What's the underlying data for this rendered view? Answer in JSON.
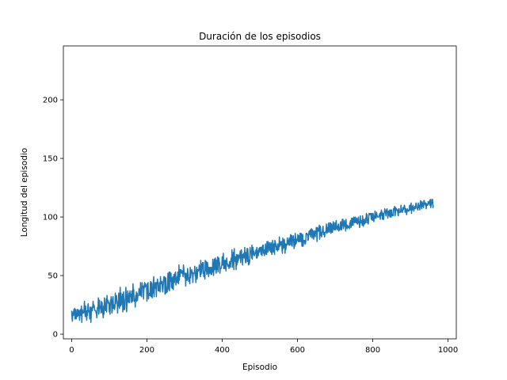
{
  "chart_data": {
    "type": "line",
    "title": "Duración de los episodios",
    "xlabel": "Episodio",
    "ylabel": "Longitud del episodio",
    "xlim": [
      -22,
      1022
    ],
    "ylim": [
      -4,
      246
    ],
    "grid": false,
    "x_ticks": [
      0,
      200,
      400,
      600,
      800,
      1000
    ],
    "y_ticks": [
      0,
      50,
      100,
      150,
      200
    ],
    "x_tick_labels": [
      "0",
      "200",
      "400",
      "600",
      "800",
      "1000"
    ],
    "y_tick_labels": [
      "0",
      "50",
      "100",
      "150",
      "200"
    ],
    "series": [
      {
        "name": "Longitud del episodio",
        "color": "#1f77b4",
        "x_start": 0,
        "x_step": 1,
        "n_points": 1000,
        "values": [
          20,
          14,
          11,
          17,
          19,
          16,
          21,
          17,
          22,
          13,
          20,
          21,
          13,
          18,
          15,
          21,
          15,
          21,
          19,
          16,
          20,
          12,
          16,
          21,
          16,
          17,
          24,
          10,
          21,
          20,
          18,
          19,
          18,
          22,
          28,
          21,
          15,
          24,
          19,
          16,
          12,
          20,
          16,
          24,
          26,
          19,
          20,
          20,
          13,
          23,
          23,
          10,
          16,
          22,
          23,
          20,
          23,
          28,
          23,
          25,
          24,
          21,
          20,
          20,
          20,
          18,
          17,
          14,
          21,
          23,
          22,
          31,
          17,
          19,
          29,
          22,
          23,
          24,
          18,
          28,
          19,
          27,
          19,
          17,
          14,
          24,
          17,
          31,
          26,
          23,
          20,
          25,
          30,
          19,
          33,
          27,
          29,
          28,
          26,
          27,
          19,
          26,
          17,
          29,
          26,
          32,
          26,
          18,
          20,
          30,
          32,
          22,
          25,
          25,
          21,
          23,
          35,
          26,
          32,
          33,
          29,
          27,
          18,
          27,
          25,
          35,
          24,
          22,
          32,
          40,
          24,
          35,
          25,
          32,
          28,
          34,
          19,
          32,
          36,
          21,
          21,
          21,
          29,
          32,
          40,
          34,
          19,
          26,
          31,
          37,
          29,
          27,
          28,
          35,
          27,
          37,
          33,
          32,
          34,
          27,
          37,
          28,
          28,
          43,
          35,
          38,
          28,
          30,
          30,
          23,
          33,
          29,
          36,
          28,
          35,
          29,
          33,
          33,
          33,
          39,
          37,
          35,
          33,
          44,
          34,
          33,
          32,
          44,
          40,
          40,
          41,
          30,
          38,
          42,
          44,
          40,
          43,
          42,
          41,
          41,
          28,
          43,
          39,
          44,
          30,
          33,
          34,
          35,
          33,
          43,
          45,
          32,
          44,
          43,
          31,
          37,
          35,
          45,
          49,
          32,
          39,
          40,
          44,
          39,
          44,
          32,
          44,
          43,
          47,
          44,
          37,
          39,
          37,
          44,
          41,
          36,
          49,
          44,
          43,
          44,
          45,
          39,
          36,
          40,
          46,
          49,
          45,
          49,
          34,
          44,
          48,
          35,
          40,
          36,
          36,
          47,
          52,
          41,
          38,
          53,
          37,
          53,
          48,
          45,
          52,
          40,
          48,
          39,
          46,
          49,
          38,
          48,
          51,
          44,
          51,
          52,
          53,
          42,
          46,
          45,
          49,
          44,
          53,
          50,
          43,
          59,
          46,
          55,
          49,
          55,
          55,
          54,
          52,
          54,
          54,
          52,
          49,
          59,
          56,
          52,
          51,
          48,
          52,
          41,
          52,
          50,
          46,
          46,
          56,
          53,
          51,
          45,
          48,
          48,
          43,
          57,
          48,
          51,
          53,
          55,
          52,
          53,
          44,
          52,
          52,
          52,
          52,
          58,
          50,
          52,
          44,
          53,
          57,
          47,
          49,
          55,
          55,
          54,
          55,
          59,
          56,
          52,
          49,
          63,
          51,
          54,
          60,
          58,
          61,
          52,
          61,
          49,
          53,
          53,
          47,
          63,
          58,
          54,
          62,
          51,
          52,
          61,
          57,
          54,
          49,
          57,
          52,
          56,
          57,
          53,
          51,
          57,
          51,
          56,
          53,
          64,
          57,
          50,
          56,
          64,
          55,
          57,
          65,
          57,
          52,
          63,
          55,
          63,
          66,
          53,
          61,
          65,
          62,
          61,
          52,
          56,
          56,
          56,
          58,
          59,
          66,
          59,
          65,
          69,
          56,
          61,
          63,
          56,
          63,
          60,
          54,
          62,
          65,
          60,
          60,
          58,
          59,
          59,
          56,
          60,
          62,
          58,
          57,
          63,
          65,
          62,
          72,
          57,
          64,
          66,
          70,
          55,
          73,
          62,
          65,
          66,
          65,
          55,
          68,
          59,
          67,
          61,
          68,
          63,
          67,
          65,
          65,
          68,
          71,
          61,
          65,
          72,
          66,
          67,
          59,
          68,
          66,
          69,
          65,
          65,
          74,
          66,
          61,
          61,
          70,
          65,
          73,
          62,
          73,
          67,
          59,
          63,
          60,
          62,
          74,
          71,
          71,
          69,
          65,
          76,
          64,
          73,
          74,
          68,
          71,
          67,
          67,
          69,
          69,
          71,
          72,
          65,
          74,
          65,
          71,
          71,
          67,
          73,
          73,
          70,
          74,
          72,
          74,
          68,
          74,
          74,
          67,
          75,
          76,
          76,
          69,
          72,
          67,
          69,
          69,
          77,
          73,
          68,
          68,
          79,
          77,
          70,
          79,
          75,
          74,
          71,
          78,
          76,
          75,
          70,
          78,
          70,
          68,
          73,
          80,
          73,
          70,
          77,
          77,
          68,
          80,
          79,
          75,
          77,
          72,
          75,
          75,
          71,
          77,
          76,
          72,
          76,
          83,
          75,
          78,
          79,
          76,
          76,
          79,
          72,
          69,
          82,
          73,
          80,
          74,
          81,
          77,
          69,
          77,
          72,
          75,
          77,
          76,
          82,
          79,
          77,
          80,
          76,
          82,
          76,
          76,
          83,
          85,
          84,
          76,
          84,
          75,
          82,
          81,
          84,
          79,
          73,
          81,
          75,
          86,
          83,
          77,
          78,
          81,
          80,
          80,
          85,
          79,
          79,
          84,
          79,
          81,
          86,
          79,
          79,
          86,
          80,
          75,
          85,
          85,
          75,
          78,
          80,
          79,
          80,
          77,
          77,
          79,
          86,
          85,
          86,
          85,
          85,
          80,
          81,
          86,
          88,
          87,
          85,
          89,
          83,
          87,
          90,
          88,
          82,
          89,
          87,
          85,
          81,
          88,
          84,
          88,
          83,
          87,
          87,
          91,
          87,
          79,
          91,
          90,
          88,
          88,
          90,
          93,
          81,
          88,
          92,
          85,
          84,
          83,
          87,
          87,
          90,
          92,
          85,
          86,
          87,
          83,
          86,
          87,
          87,
          89,
          94,
          86,
          87,
          91,
          87,
          94,
          95,
          88,
          87,
          90,
          95,
          95,
          86,
          91,
          94,
          87,
          87,
          90,
          96,
          95,
          90,
          89,
          89,
          95,
          89,
          95,
          97,
          90,
          92,
          89,
          92,
          93,
          94,
          88,
          91,
          89,
          90,
          95,
          96,
          89,
          89,
          92,
          98,
          93,
          98,
          90,
          92,
          94,
          97,
          92,
          95,
          88,
          98,
          92,
          92,
          90,
          93,
          91,
          91,
          92,
          91,
          90,
          95,
          95,
          97,
          91,
          92,
          99,
          93,
          93,
          99,
          93,
          97,
          100,
          99,
          95,
          98,
          100,
          96,
          95,
          97,
          99,
          94,
          94,
          96,
          100,
          95,
          96,
          91,
          94,
          101,
          96,
          95,
          95,
          97,
          93,
          101,
          96,
          92,
          94,
          98,
          94,
          95,
          95,
          99,
          95,
          103,
          100,
          102,
          95,
          97,
          94,
          98,
          103,
          102,
          102,
          103,
          102,
          103,
          98,
          100,
          103,
          97,
          98,
          103,
          99,
          96,
          101,
          99,
          105,
          99,
          102,
          99,
          104,
          102,
          101,
          100,
          100,
          100,
          100,
          101,
          102,
          103,
          98,
          104,
          101,
          106,
          103,
          104,
          98,
          98,
          103,
          98,
          103,
          104,
          107,
          104,
          104,
          101,
          106,
          104,
          107,
          103,
          99,
          103,
          105,
          105,
          101,
          106,
          100,
          100,
          106,
          100,
          106,
          101,
          102,
          102,
          101,
          107,
          106,
          107,
          109,
          101,
          102,
          108,
          106,
          107,
          106,
          105,
          106,
          102,
          101,
          107,
          107,
          104,
          104,
          104,
          104,
          110,
          105,
          106,
          104,
          104,
          108,
          106,
          107,
          108,
          110,
          109,
          104,
          105,
          107,
          105,
          102,
          105,
          107,
          105,
          106,
          105,
          105,
          106,
          110,
          110,
          106,
          110,
          112,
          103,
          109,
          106,
          109,
          110,
          108,
          105,
          107,
          108,
          109,
          107,
          110,
          112,
          111,
          108,
          107,
          108,
          106,
          112,
          109,
          108,
          110,
          106,
          111,
          114,
          112,
          109,
          107,
          113,
          109,
          112,
          110,
          108,
          114,
          114,
          111,
          111,
          110,
          112,
          107,
          111,
          110,
          110,
          110,
          113,
          111,
          112,
          112,
          114,
          110,
          115,
          108,
          110,
          111,
          115,
          112,
          115,
          108,
          110
        ]
      }
    ]
  }
}
